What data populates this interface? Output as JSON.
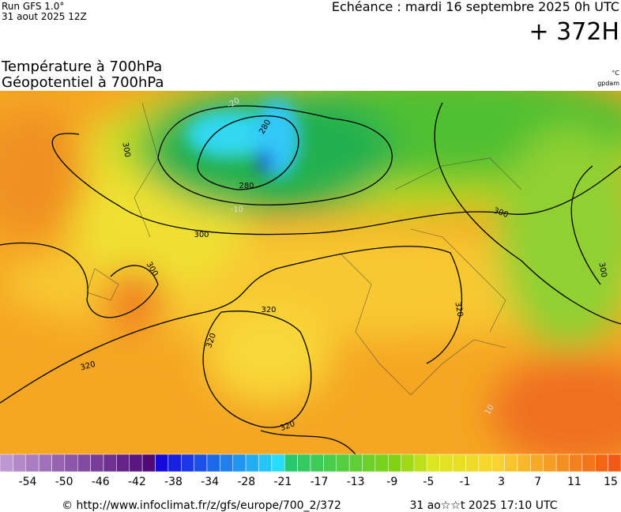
{
  "header": {
    "run": "Run GFS 1.0°",
    "run_date": "31 aout 2025 12Z",
    "echeance": "Echéance : mardi 16 septembre 2025 0h UTC",
    "lead": "+ 372H",
    "title_temp": "Température à 700hPa",
    "title_geo": "Géopotentiel à 700hPa",
    "unit_temp": "°C",
    "unit_geo": "gpdam"
  },
  "map": {
    "contour_labels": [
      "280",
      "280",
      "300",
      "300",
      "300",
      "300",
      "300",
      "320",
      "320",
      "320",
      "320",
      "320",
      "-20",
      "-10",
      "10"
    ]
  },
  "colorbar": {
    "labels": [
      "-54",
      "-50",
      "-46",
      "-42",
      "-38",
      "-34",
      "-28",
      "-21",
      "-17",
      "-13",
      "-9",
      "-5",
      "-1",
      "3",
      "7",
      "11",
      "15"
    ]
  },
  "footer": {
    "url": "© http://www.infoclimat.fr/z/gfs/europe/700_2/372",
    "timestamp": "31 ao☆☆t 2025 17:10 UTC"
  }
}
